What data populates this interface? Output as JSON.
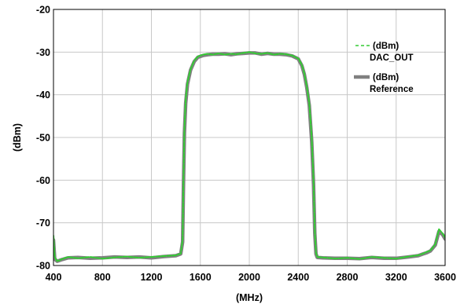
{
  "chart_data": {
    "type": "line",
    "title": "",
    "xlabel": "(MHz)",
    "ylabel": "(dBm)",
    "xlim": [
      400,
      3600
    ],
    "ylim": [
      -80,
      -20
    ],
    "x_ticks": [
      400,
      800,
      1200,
      1600,
      2000,
      2400,
      2800,
      3200,
      3600
    ],
    "y_ticks": [
      -20,
      -30,
      -40,
      -50,
      -60,
      -70,
      -80
    ],
    "grid": true,
    "legend_position": "top-right",
    "series": [
      {
        "name": "(dBm) DAC_OUT",
        "legend_line1": "(dBm)",
        "legend_line2": "DAC_OUT",
        "color": "#33cc33",
        "style": "dashed",
        "x": [
          400,
          410,
          430,
          470,
          520,
          600,
          700,
          800,
          900,
          1000,
          1100,
          1200,
          1300,
          1400,
          1440,
          1455,
          1462,
          1470,
          1480,
          1495,
          1520,
          1550,
          1580,
          1620,
          1660,
          1700,
          1750,
          1800,
          1850,
          1900,
          1950,
          2000,
          2050,
          2100,
          2150,
          2200,
          2250,
          2300,
          2350,
          2400,
          2430,
          2450,
          2470,
          2490,
          2510,
          2525,
          2535,
          2545,
          2555,
          2600,
          2700,
          2800,
          2900,
          3000,
          3100,
          3200,
          3300,
          3380,
          3420,
          3450,
          3480,
          3520,
          3550,
          3580,
          3600
        ],
        "y": [
          -73,
          -78,
          -79,
          -78.5,
          -78,
          -78.3,
          -78,
          -78.4,
          -78.1,
          -77.9,
          -78.2,
          -78,
          -77.8,
          -77.6,
          -77.2,
          -74,
          -60,
          -48,
          -41,
          -37,
          -34,
          -32,
          -31,
          -30.6,
          -30.4,
          -30.6,
          -30.3,
          -30.6,
          -30.4,
          -30.5,
          -30.2,
          -30,
          -30.3,
          -30.4,
          -30.2,
          -30.6,
          -30.4,
          -30.5,
          -30.8,
          -31.5,
          -33,
          -35,
          -38,
          -42,
          -50,
          -60,
          -72,
          -77,
          -78,
          -78.1,
          -78.4,
          -78.2,
          -78.5,
          -78,
          -78.2,
          -78.4,
          -77.9,
          -77.6,
          -77.2,
          -76.8,
          -76.5,
          -75,
          -71.5,
          -72.5,
          -73.5
        ]
      },
      {
        "name": "(dBm) Reference",
        "legend_line1": "(dBm)",
        "legend_line2": "Reference",
        "color": "#808080",
        "style": "solid",
        "x": [
          400,
          410,
          430,
          470,
          520,
          600,
          700,
          800,
          900,
          1000,
          1100,
          1200,
          1300,
          1400,
          1440,
          1455,
          1462,
          1470,
          1480,
          1495,
          1520,
          1550,
          1580,
          1620,
          1660,
          1700,
          1750,
          1800,
          1850,
          1900,
          1950,
          2000,
          2050,
          2100,
          2150,
          2200,
          2250,
          2300,
          2350,
          2400,
          2430,
          2450,
          2470,
          2490,
          2510,
          2525,
          2535,
          2545,
          2555,
          2600,
          2700,
          2800,
          2900,
          3000,
          3100,
          3200,
          3300,
          3380,
          3420,
          3450,
          3480,
          3520,
          3550,
          3580,
          3600
        ],
        "y": [
          -74,
          -78.5,
          -79,
          -78.6,
          -78.2,
          -78.1,
          -78.3,
          -78.2,
          -78,
          -78.1,
          -78,
          -78.2,
          -77.9,
          -77.7,
          -77.3,
          -74.5,
          -61,
          -49,
          -42,
          -37.5,
          -34.2,
          -32.2,
          -31.2,
          -30.8,
          -30.6,
          -30.5,
          -30.5,
          -30.4,
          -30.6,
          -30.4,
          -30.3,
          -30.2,
          -30.2,
          -30.5,
          -30.3,
          -30.5,
          -30.5,
          -30.6,
          -30.9,
          -31.6,
          -33.2,
          -35.2,
          -38.3,
          -42.5,
          -51,
          -61,
          -72.5,
          -77.3,
          -78.1,
          -78.2,
          -78.3,
          -78.3,
          -78.4,
          -78.1,
          -78.3,
          -78.3,
          -78,
          -77.7,
          -77.3,
          -77,
          -76.6,
          -75.2,
          -72,
          -72.8,
          -73.8
        ]
      }
    ]
  }
}
